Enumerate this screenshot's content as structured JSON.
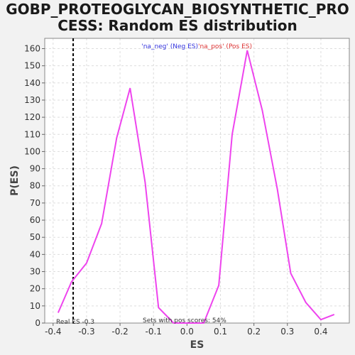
{
  "chart_data": {
    "type": "line",
    "title_lines": [
      "GOBP_PROTEOGLYCAN_BIOSYNTHETIC_PRO",
      "CESS: Random ES distribution"
    ],
    "xlabel": "ES",
    "ylabel": "P(ES)",
    "xlim": [
      -0.425,
      0.485
    ],
    "ylim": [
      0,
      166
    ],
    "xticks": [
      -0.4,
      -0.3,
      -0.2,
      -0.1,
      0.0,
      0.1,
      0.2,
      0.3,
      0.4
    ],
    "xtick_labels": [
      "-0.4",
      "-0.3",
      "-0.2",
      "-0.1",
      "0.0",
      "0.1",
      "0.2",
      "0.3",
      "0.4"
    ],
    "yticks": [
      0,
      10,
      20,
      30,
      40,
      50,
      60,
      70,
      80,
      90,
      100,
      110,
      120,
      130,
      140,
      150,
      160
    ],
    "grid": true,
    "series": [
      {
        "color": "#ee44ee",
        "x": [
          -0.385,
          -0.345,
          -0.3,
          -0.255,
          -0.21,
          -0.17,
          -0.125,
          -0.085,
          -0.04,
          0.005,
          0.05,
          0.095,
          0.135,
          0.18,
          0.225,
          0.27,
          0.31,
          0.355,
          0.4,
          0.44
        ],
        "y": [
          6,
          24,
          35,
          58,
          108,
          137,
          82,
          9,
          0,
          0,
          0,
          22,
          110,
          159,
          124,
          78,
          29,
          12,
          2,
          5
        ]
      }
    ],
    "real_es": -0.34,
    "legend": {
      "neg_text": "'na_neg' (Neg ES)",
      "neg_color": "#3333dd",
      "pos_text": "'na_pos' (Pos ES)",
      "pos_color": "#dd3333",
      "placement": "top-center"
    },
    "annotations": {
      "real_es_label": "Real ES -0.3",
      "pos_scores_label": "Sets with pos scores: 54%"
    }
  }
}
